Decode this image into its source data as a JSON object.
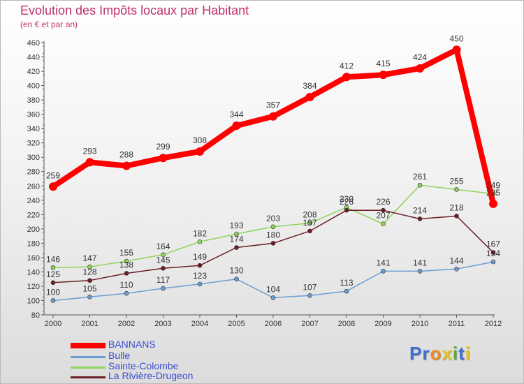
{
  "chart_data": {
    "type": "line",
    "title": "Evolution des Impôts locaux par Habitant",
    "subtitle": "(en € et par an)",
    "xlabel": "",
    "ylabel": "",
    "x": [
      "2000",
      "2001",
      "2002",
      "2003",
      "2004",
      "2005",
      "2006",
      "2007",
      "2008",
      "2009",
      "2010",
      "2011",
      "2012"
    ],
    "ylim": [
      80,
      460
    ],
    "yticks": [
      80,
      100,
      120,
      140,
      160,
      180,
      200,
      220,
      240,
      260,
      280,
      300,
      320,
      340,
      360,
      380,
      400,
      420,
      440,
      460
    ],
    "grid": false,
    "legend_position": "bottom-left",
    "series": [
      {
        "name": "BANNANS",
        "color": "#ff0000",
        "values": [
          259,
          293,
          288,
          299,
          308,
          344,
          357,
          384,
          412,
          415,
          424,
          450,
          235
        ],
        "labels": [
          "259",
          "293",
          "288",
          "299",
          "308",
          "344",
          "357",
          "384",
          "412",
          "415",
          "424",
          "450",
          "235"
        ]
      },
      {
        "name": "Bulle",
        "color": "#6a9ed1",
        "values": [
          100,
          105,
          110,
          117,
          123,
          130,
          104,
          107,
          113,
          141,
          141,
          144,
          154
        ],
        "labels": [
          "100",
          "105",
          "110",
          "117",
          "123",
          "130",
          "104",
          "107",
          "113",
          "141",
          "141",
          "144",
          "154"
        ]
      },
      {
        "name": "Sainte-Colombe",
        "color": "#8fd45a",
        "values": [
          146,
          147,
          155,
          164,
          182,
          193,
          203,
          208,
          230,
          207,
          261,
          255,
          249
        ],
        "labels": [
          "146",
          "147",
          "155",
          "164",
          "182",
          "193",
          "203",
          "208",
          "230",
          "207",
          "261",
          "255",
          "249"
        ]
      },
      {
        "name": "La Rivière-Drugeon",
        "color": "#6b1e24",
        "values": [
          125,
          128,
          138,
          145,
          149,
          174,
          180,
          197,
          226,
          226,
          214,
          218,
          167
        ],
        "labels": [
          "125",
          "128",
          "138",
          "145",
          "149",
          "174",
          "180",
          "197",
          "226",
          "226",
          "214",
          "218",
          "167"
        ]
      }
    ]
  },
  "logo": {
    "text": "Proxiti",
    "letters": [
      "P",
      "r",
      "o",
      "x",
      "i",
      "t",
      "i"
    ],
    "colors": [
      "#3b6fd1",
      "#3b6fd1",
      "#f08a1c",
      "#e8c21a",
      "#5ab02c",
      "#3b6fd1",
      "#e8c21a"
    ]
  }
}
